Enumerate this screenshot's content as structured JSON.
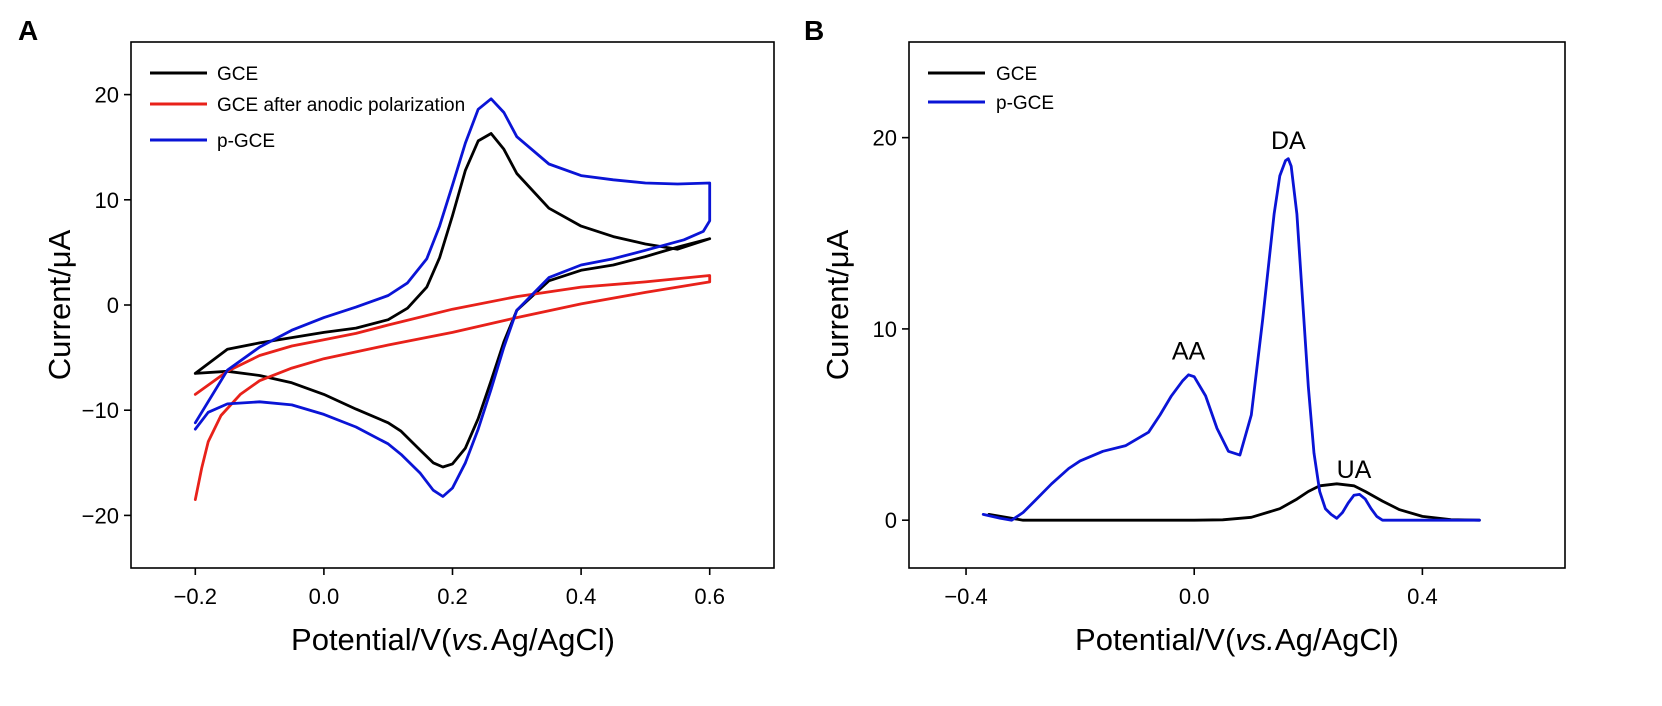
{
  "chart_data": [
    {
      "panel_label": "A",
      "type": "line",
      "xlabel": {
        "main": "Potential/V(",
        "italic": "vs.",
        "rest": "Ag/AgCl)"
      },
      "ylabel": "Current/μA",
      "xlim": [
        -0.3,
        0.7
      ],
      "ylim": [
        -25,
        25
      ],
      "xticks": [
        -0.2,
        0.0,
        0.2,
        0.4,
        0.6
      ],
      "xtick_labels": [
        "−0.2",
        "0.0",
        "0.2",
        "0.4",
        "0.6"
      ],
      "yticks": [
        -20,
        -10,
        0,
        10,
        20
      ],
      "ytick_labels": [
        "−20",
        "−10",
        "0",
        "10",
        "20"
      ],
      "legend_position": "top-left",
      "series": [
        {
          "name": "GCE",
          "color": "#000000",
          "x": [
            -0.2,
            -0.15,
            -0.1,
            -0.05,
            0.0,
            0.05,
            0.1,
            0.13,
            0.16,
            0.18,
            0.2,
            0.22,
            0.24,
            0.26,
            0.28,
            0.3,
            0.35,
            0.4,
            0.45,
            0.5,
            0.55,
            0.6,
            0.6,
            0.55,
            0.5,
            0.45,
            0.4,
            0.35,
            0.3,
            0.28,
            0.26,
            0.24,
            0.22,
            0.2,
            0.185,
            0.17,
            0.15,
            0.12,
            0.1,
            0.05,
            0.0,
            -0.05,
            -0.1,
            -0.15,
            -0.2
          ],
          "y": [
            -6.5,
            -4.2,
            -3.6,
            -3.1,
            -2.6,
            -2.2,
            -1.4,
            -0.3,
            1.7,
            4.5,
            8.5,
            12.8,
            15.6,
            16.3,
            14.8,
            12.5,
            9.2,
            7.5,
            6.5,
            5.8,
            5.3,
            6.3,
            6.3,
            5.5,
            4.6,
            3.8,
            3.3,
            2.3,
            -0.5,
            -3.5,
            -7.2,
            -10.8,
            -13.6,
            -15.1,
            -15.4,
            -15.0,
            -13.8,
            -12.0,
            -11.2,
            -9.9,
            -8.5,
            -7.4,
            -6.7,
            -6.3,
            -6.5
          ]
        },
        {
          "name": "GCE after anodic polarization",
          "color": "#e8211a",
          "x": [
            -0.2,
            -0.15,
            -0.1,
            -0.05,
            0.0,
            0.05,
            0.1,
            0.2,
            0.3,
            0.4,
            0.5,
            0.6,
            0.6,
            0.5,
            0.4,
            0.3,
            0.2,
            0.1,
            0.0,
            -0.05,
            -0.1,
            -0.13,
            -0.16,
            -0.18,
            -0.19,
            -0.2
          ],
          "y": [
            -8.5,
            -6.3,
            -4.8,
            -3.9,
            -3.3,
            -2.7,
            -1.9,
            -0.4,
            0.8,
            1.7,
            2.2,
            2.8,
            2.2,
            1.2,
            0.1,
            -1.2,
            -2.6,
            -3.8,
            -5.1,
            -6.0,
            -7.2,
            -8.5,
            -10.5,
            -13.0,
            -15.5,
            -18.5
          ]
        },
        {
          "name": "p-GCE",
          "color": "#0a14d6",
          "x": [
            -0.2,
            -0.15,
            -0.1,
            -0.05,
            0.0,
            0.05,
            0.1,
            0.13,
            0.16,
            0.18,
            0.2,
            0.22,
            0.24,
            0.26,
            0.28,
            0.3,
            0.35,
            0.4,
            0.45,
            0.5,
            0.55,
            0.6,
            0.6,
            0.6,
            0.59,
            0.56,
            0.5,
            0.45,
            0.4,
            0.35,
            0.3,
            0.28,
            0.26,
            0.24,
            0.22,
            0.2,
            0.185,
            0.17,
            0.15,
            0.12,
            0.1,
            0.05,
            0.0,
            -0.05,
            -0.1,
            -0.15,
            -0.18,
            -0.2
          ],
          "y": [
            -11.2,
            -6.2,
            -4.0,
            -2.4,
            -1.2,
            -0.2,
            0.9,
            2.1,
            4.4,
            7.5,
            11.4,
            15.4,
            18.6,
            19.6,
            18.3,
            16.0,
            13.4,
            12.3,
            11.9,
            11.6,
            11.5,
            11.6,
            10.0,
            8.0,
            7.0,
            6.2,
            5.2,
            4.4,
            3.8,
            2.6,
            -0.5,
            -4.0,
            -8.0,
            -11.8,
            -15.0,
            -17.4,
            -18.2,
            -17.6,
            -16.0,
            -14.2,
            -13.2,
            -11.6,
            -10.4,
            -9.5,
            -9.2,
            -9.4,
            -10.2,
            -11.8
          ]
        }
      ]
    },
    {
      "panel_label": "B",
      "type": "line",
      "xlabel": {
        "main": "Potential/V(",
        "italic": "vs.",
        "rest": "Ag/AgCl)"
      },
      "ylabel": "Current/μA",
      "xlim": [
        -0.5,
        0.65
      ],
      "ylim": [
        -2.5,
        25
      ],
      "xticks": [
        -0.4,
        0.0,
        0.4
      ],
      "xtick_labels": [
        "−0.4",
        "0.0",
        "0.4"
      ],
      "yticks": [
        0,
        10,
        20
      ],
      "ytick_labels": [
        "0",
        "10",
        "20"
      ],
      "legend_position": "top-left",
      "annotations": [
        {
          "text": "AA",
          "x": -0.01,
          "y": 8.4
        },
        {
          "text": "DA",
          "x": 0.165,
          "y": 19.4
        },
        {
          "text": "UA",
          "x": 0.28,
          "y": 2.2
        }
      ],
      "series": [
        {
          "name": "GCE",
          "color": "#000000",
          "x": [
            -0.36,
            -0.3,
            -0.2,
            -0.1,
            0.0,
            0.05,
            0.1,
            0.15,
            0.18,
            0.2,
            0.22,
            0.25,
            0.28,
            0.3,
            0.33,
            0.36,
            0.4,
            0.45,
            0.5
          ],
          "y": [
            0.3,
            0.0,
            0.0,
            0.0,
            0.0,
            0.02,
            0.15,
            0.6,
            1.1,
            1.5,
            1.8,
            1.9,
            1.8,
            1.5,
            1.0,
            0.55,
            0.2,
            0.03,
            0.0
          ]
        },
        {
          "name": "p-GCE",
          "color": "#0a14d6",
          "x": [
            -0.37,
            -0.34,
            -0.32,
            -0.3,
            -0.28,
            -0.25,
            -0.22,
            -0.2,
            -0.16,
            -0.12,
            -0.08,
            -0.06,
            -0.04,
            -0.02,
            -0.01,
            0.0,
            0.02,
            0.04,
            0.06,
            0.08,
            0.1,
            0.12,
            0.14,
            0.15,
            0.16,
            0.165,
            0.17,
            0.18,
            0.19,
            0.2,
            0.21,
            0.22,
            0.23,
            0.24,
            0.25,
            0.26,
            0.27,
            0.28,
            0.29,
            0.3,
            0.31,
            0.32,
            0.33,
            0.35,
            0.4,
            0.5
          ],
          "y": [
            0.3,
            0.1,
            0.0,
            0.4,
            1.0,
            1.9,
            2.7,
            3.1,
            3.6,
            3.9,
            4.6,
            5.5,
            6.5,
            7.3,
            7.6,
            7.5,
            6.5,
            4.8,
            3.6,
            3.4,
            5.5,
            10.5,
            16.0,
            18.0,
            18.8,
            18.9,
            18.5,
            16.0,
            11.5,
            7.0,
            3.5,
            1.5,
            0.6,
            0.3,
            0.1,
            0.4,
            0.9,
            1.3,
            1.35,
            1.1,
            0.6,
            0.2,
            0.0,
            0.0,
            0.0,
            0.0
          ]
        }
      ]
    }
  ]
}
